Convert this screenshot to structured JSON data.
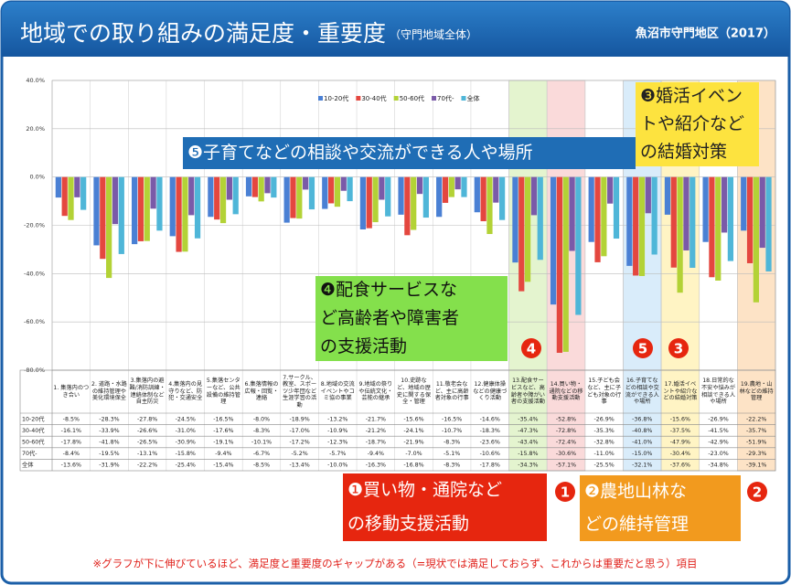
{
  "header": {
    "title": "地域での取り組みの満足度・重要度",
    "subtitle": "（守門地域全体）",
    "region": "魚沼市守門地区（2017）"
  },
  "chart_data": {
    "type": "bar",
    "categories": [
      "1. 集落内のつき合い",
      "2. 道路・水路の維持管理や美化環境保全",
      "3.集落内の避難/消防訓練・連絡体制など自主防災",
      "4.集落内の見守りなど、防犯・交通安全",
      "5.集落センターなど、公共設備の維持管理",
      "6.集落情報の広報・回覧・連絡",
      "7.サークル、教室、スポーツ少年団など生涯学習の活動",
      "8.地域の交流イベントやコミ協の事業",
      "9.地域の祭りや伝統文化・芸能の継承",
      "10.史跡など、地域の歴史に関する保全・管理",
      "11.敬老会など、主に高齢者対象の行事",
      "12.健康体操などの健康づくり活動",
      "13.配食サービスなど、高齢者や障がい者の支援活動",
      "14.買い物・通院などの移動支援活動",
      "15.子ども会など、主に子ども対象の行事",
      "16.子育てなどの相談や交流ができる人や場所",
      "17.婚活イベントや紹介などの結婚対策",
      "18.日常的な不安や悩みが相談できる人や場所",
      "19.農地・山林などの維持管理"
    ],
    "series": [
      {
        "name": "10-20代",
        "color": "#4a80d4",
        "values": [
          -8.5,
          -28.3,
          -27.8,
          -24.5,
          -16.5,
          -8.0,
          -18.9,
          -13.2,
          -21.7,
          -15.6,
          -16.5,
          -14.6,
          -35.4,
          -52.8,
          -26.9,
          -36.8,
          -15.6,
          -26.9,
          -22.2
        ],
        "value_labels": [
          "-8.5%",
          "-28.3%",
          "-27.8%",
          "-24.5%",
          "-16.5%",
          "-8.0%",
          "-18.9%",
          "-13.2%",
          "-21.7%",
          "-15.6%",
          "-16.5%",
          "-14.6%",
          "-35.4%",
          "-52.8%",
          "-26.9%",
          "-36.8%",
          "-15.6%",
          "-26.9%",
          "-22.2%"
        ]
      },
      {
        "name": "30-40代",
        "color": "#e4473f",
        "values": [
          -16.1,
          -33.9,
          -26.6,
          -31.0,
          -17.6,
          -8.3,
          -17.0,
          -10.9,
          -21.2,
          -24.1,
          -10.7,
          -18.3,
          -47.3,
          -72.8,
          -35.3,
          -40.8,
          -37.5,
          -41.5,
          -35.7
        ],
        "value_labels": [
          "-16.1%",
          "-33.9%",
          "-26.6%",
          "-31.0%",
          "-17.6%",
          "-8.3%",
          "-17.0%",
          "-10.9%",
          "-21.2%",
          "-24.1%",
          "-10.7%",
          "-18.3%",
          "-47.3%",
          "-72.8%",
          "-35.3%",
          "-40.8%",
          "-37.5%",
          "-41.5%",
          "-35.7%"
        ]
      },
      {
        "name": "50-60代",
        "color": "#b3d236",
        "values": [
          -17.8,
          -41.8,
          -26.5,
          -30.9,
          -19.1,
          -10.1,
          -17.2,
          -12.3,
          -18.7,
          -21.9,
          -8.3,
          -23.6,
          -43.4,
          -72.4,
          -32.8,
          -41.0,
          -47.9,
          -42.9,
          -51.9
        ],
        "value_labels": [
          "-17.8%",
          "-41.8%",
          "-26.5%",
          "-30.9%",
          "-19.1%",
          "-10.1%",
          "-17.2%",
          "-12.3%",
          "-18.7%",
          "-21.9%",
          "-8.3%",
          "-23.6%",
          "-43.4%",
          "-72.4%",
          "-32.8%",
          "-41.0%",
          "-47.9%",
          "-42.9%",
          "-51.9%"
        ]
      },
      {
        "name": "70代-",
        "color": "#7a5aa8",
        "values": [
          -8.4,
          -19.5,
          -13.1,
          -15.8,
          -9.4,
          -6.7,
          -5.2,
          -5.7,
          -9.4,
          -7.0,
          -5.1,
          -10.6,
          -15.8,
          -30.6,
          -11.0,
          -15.0,
          -30.4,
          -23.0,
          -29.3
        ],
        "value_labels": [
          "-8.4%",
          "-19.5%",
          "-13.1%",
          "-15.8%",
          "-9.4%",
          "-6.7%",
          "-5.2%",
          "-5.7%",
          "-9.4%",
          "-7.0%",
          "-5.1%",
          "-10.6%",
          "-15.8%",
          "-30.6%",
          "-11.0%",
          "-15.0%",
          "-30.4%",
          "-23.0%",
          "-29.3%"
        ]
      },
      {
        "name": "全体",
        "color": "#4fb6d8",
        "values": [
          -13.6,
          -31.9,
          -22.2,
          -25.4,
          -15.4,
          -8.5,
          -13.4,
          -10.0,
          -16.3,
          -16.8,
          -8.3,
          -17.8,
          -34.3,
          -57.1,
          -25.5,
          -32.1,
          -37.6,
          -34.8,
          -39.1
        ],
        "value_labels": [
          "-13.6%",
          "-31.9%",
          "-22.2%",
          "-25.4%",
          "-15.4%",
          "-8.5%",
          "-13.4%",
          "-10.0%",
          "-16.3%",
          "-16.8%",
          "-8.3%",
          "-17.8%",
          "-34.3%",
          "-57.1%",
          "-25.5%",
          "-32.1%",
          "-37.6%",
          "-34.8%",
          "-39.1%"
        ]
      }
    ],
    "ylim": [
      -80,
      40
    ],
    "yticks": [
      {
        "value": 40,
        "label": "40.0%"
      },
      {
        "value": 20,
        "label": "20.0%"
      },
      {
        "value": 0,
        "label": "0.0%"
      },
      {
        "value": -20,
        "label": "-20.0%"
      },
      {
        "value": -40,
        "label": "-40.0%"
      },
      {
        "value": -60,
        "label": "-60.0%"
      },
      {
        "value": -80,
        "label": "-80.0%"
      }
    ],
    "grid": true,
    "legend": "top",
    "column_highlights": [
      null,
      null,
      null,
      null,
      null,
      null,
      null,
      null,
      null,
      null,
      null,
      null,
      "#e4f4cf",
      "#fadada",
      null,
      "#d9ecfa",
      "#fff4c4",
      null,
      "#fde3c6"
    ]
  },
  "annotations": [
    {
      "lines": [
        "❺子育てなどの相談や交流ができる人や場所"
      ],
      "color": "#1f6db5"
    },
    {
      "lines": [
        "❸婚活イベン",
        "トや紹介など",
        "の結婚対策"
      ],
      "color": "#fde33f"
    },
    {
      "lines": [
        "❹配食サービスな",
        "ど高齢者や障害者",
        "の支援活動"
      ],
      "color": "#84e04c"
    },
    {
      "lines": [
        "❶買い物・通院など",
        "の移動支援活動"
      ],
      "color": "#e6260f"
    },
    {
      "lines": [
        "❷農地山林な",
        "どの維持管理"
      ],
      "color": "#f29a1e"
    }
  ],
  "markers": [
    "4",
    "5",
    "3",
    "1",
    "2"
  ],
  "footnote": "※グラフが下に伸びているほど、満足度と重要度のギャップがある（=現状では満足しておらず、これからは重要だと思う）項目"
}
